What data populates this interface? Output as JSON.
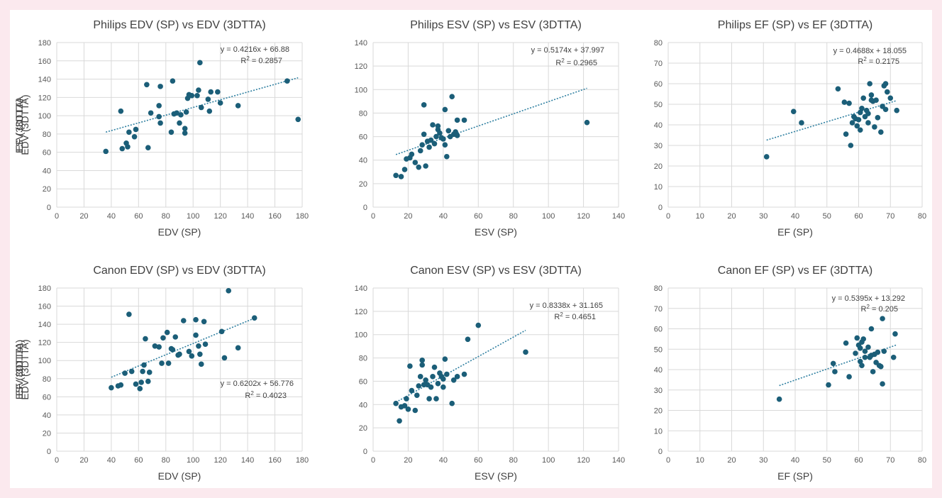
{
  "style": {
    "point_color": "#1b5e78",
    "trend_color": "#2e7fa0",
    "grid_color": "#d9d9d9"
  },
  "chart_data": [
    {
      "type": "scatter",
      "title": "Philips EDV (SP) vs EDV (3DTTA)",
      "xlabel": "EDV (SP)",
      "ylabel": "EDV (3DTTA)",
      "xlim": [
        0,
        180
      ],
      "ylim": [
        0,
        180
      ],
      "xticks": [
        0,
        20,
        40,
        60,
        80,
        100,
        120,
        140,
        160,
        180
      ],
      "yticks": [
        0,
        20,
        40,
        60,
        80,
        100,
        120,
        140,
        160,
        180
      ],
      "grid": true,
      "equation": "y = 0.4216x + 66.88",
      "r2_label": "R",
      "r2_value": " = 0.2857",
      "trend": {
        "slope": 0.4216,
        "intercept": 66.88,
        "x_range": [
          36,
          177
        ]
      },
      "points": [
        [
          36,
          61
        ],
        [
          47,
          105
        ],
        [
          48,
          64
        ],
        [
          51,
          70
        ],
        [
          52,
          66
        ],
        [
          53,
          82
        ],
        [
          57,
          77
        ],
        [
          58,
          85
        ],
        [
          66,
          134
        ],
        [
          67,
          65
        ],
        [
          69,
          103
        ],
        [
          75,
          111
        ],
        [
          75,
          99
        ],
        [
          76,
          92
        ],
        [
          76,
          132
        ],
        [
          84,
          82
        ],
        [
          85,
          138
        ],
        [
          86,
          102
        ],
        [
          88,
          103
        ],
        [
          90,
          92
        ],
        [
          91,
          101
        ],
        [
          94,
          86
        ],
        [
          94,
          81
        ],
        [
          95,
          104
        ],
        [
          96,
          119
        ],
        [
          97,
          123
        ],
        [
          99,
          122
        ],
        [
          103,
          122
        ],
        [
          104,
          128
        ],
        [
          105,
          158
        ],
        [
          106,
          109
        ],
        [
          111,
          118
        ],
        [
          112,
          105
        ],
        [
          113,
          126
        ],
        [
          118,
          126
        ],
        [
          120,
          114
        ],
        [
          133,
          111
        ],
        [
          169,
          138
        ],
        [
          177,
          96
        ]
      ]
    },
    {
      "type": "scatter",
      "title": "Philips ESV (SP) vs ESV (3DTTA)",
      "xlabel": "ESV (SP)",
      "ylabel": "ESV (3DTTA",
      "xlim": [
        0,
        140
      ],
      "ylim": [
        0,
        140
      ],
      "xticks": [
        0,
        20,
        40,
        60,
        80,
        100,
        120,
        140
      ],
      "yticks": [
        0,
        20,
        40,
        60,
        80,
        100,
        120,
        140
      ],
      "grid": true,
      "equation": "y = 0.5174x + 37.997",
      "r2_label": "R",
      "r2_value": " = 0.2965",
      "trend": {
        "slope": 0.5174,
        "intercept": 37.997,
        "x_range": [
          13,
          122
        ]
      },
      "points": [
        [
          13,
          27
        ],
        [
          16,
          26
        ],
        [
          18,
          32
        ],
        [
          19,
          41
        ],
        [
          21,
          42
        ],
        [
          22,
          45
        ],
        [
          24,
          38
        ],
        [
          26,
          34
        ],
        [
          27,
          48
        ],
        [
          28,
          53
        ],
        [
          29,
          62
        ],
        [
          29,
          87
        ],
        [
          30,
          35
        ],
        [
          31,
          56
        ],
        [
          32,
          51
        ],
        [
          33,
          57
        ],
        [
          34,
          70
        ],
        [
          35,
          54
        ],
        [
          36,
          60
        ],
        [
          37,
          66
        ],
        [
          37,
          69
        ],
        [
          38,
          63
        ],
        [
          39,
          59
        ],
        [
          40,
          58
        ],
        [
          41,
          53
        ],
        [
          41,
          83
        ],
        [
          42,
          43
        ],
        [
          43,
          65
        ],
        [
          44,
          60
        ],
        [
          45,
          94
        ],
        [
          46,
          62
        ],
        [
          47,
          64
        ],
        [
          48,
          74
        ],
        [
          48,
          61
        ],
        [
          52,
          74
        ],
        [
          122,
          72
        ]
      ]
    },
    {
      "type": "scatter",
      "title": "Philips EF (SP) vs EF (3DTTA)",
      "xlabel": "EF (SP)",
      "ylabel": "EF (3DTTA)",
      "xlim": [
        0,
        80
      ],
      "ylim": [
        0,
        80
      ],
      "xticks": [
        0,
        10,
        20,
        30,
        40,
        50,
        60,
        70,
        80
      ],
      "yticks": [
        0,
        10,
        20,
        30,
        40,
        50,
        60,
        70,
        80
      ],
      "grid": true,
      "equation": "y = 0.4688x + 18.055",
      "r2_label": "R",
      "r2_value": " = 0.2175",
      "trend": {
        "slope": 0.4688,
        "intercept": 18.055,
        "x_range": [
          31,
          72
        ]
      },
      "points": [
        [
          31,
          24.5
        ],
        [
          39.5,
          46.5
        ],
        [
          42,
          41
        ],
        [
          53.5,
          57.5
        ],
        [
          55.5,
          51
        ],
        [
          56,
          35.5
        ],
        [
          57,
          50.5
        ],
        [
          57.5,
          30
        ],
        [
          58,
          41
        ],
        [
          58.5,
          44
        ],
        [
          59,
          43
        ],
        [
          59.5,
          39.5
        ],
        [
          60,
          42.5
        ],
        [
          60.5,
          37.5
        ],
        [
          60.5,
          46
        ],
        [
          61,
          48
        ],
        [
          61.5,
          53
        ],
        [
          62,
          44
        ],
        [
          62.5,
          47
        ],
        [
          63,
          41
        ],
        [
          63,
          45.5
        ],
        [
          63.5,
          60
        ],
        [
          64,
          54.5
        ],
        [
          64,
          52
        ],
        [
          64.5,
          51.5
        ],
        [
          65,
          39
        ],
        [
          65.5,
          52
        ],
        [
          66,
          43.5
        ],
        [
          67,
          36.5
        ],
        [
          67.5,
          49
        ],
        [
          68,
          59
        ],
        [
          68.5,
          47.5
        ],
        [
          68.5,
          60
        ],
        [
          69,
          56
        ],
        [
          70,
          53
        ],
        [
          72,
          47
        ]
      ]
    },
    {
      "type": "scatter",
      "title": "Canon EDV (SP) vs EDV (3DTTA)",
      "xlabel": "EDV (SP)",
      "ylabel": "EDV (3DTTA)",
      "xlim": [
        0,
        180
      ],
      "ylim": [
        0,
        180
      ],
      "xticks": [
        0,
        20,
        40,
        60,
        80,
        100,
        120,
        140,
        160,
        180
      ],
      "yticks": [
        0,
        20,
        40,
        60,
        80,
        100,
        120,
        140,
        160,
        180
      ],
      "grid": true,
      "equation": "y = 0.6202x + 56.776",
      "r2_label": "R",
      "r2_value": " = 0.4023",
      "trend": {
        "slope": 0.6202,
        "intercept": 56.776,
        "x_range": [
          40,
          146
        ]
      },
      "points": [
        [
          40,
          70
        ],
        [
          45,
          72
        ],
        [
          47,
          73
        ],
        [
          50,
          86
        ],
        [
          53,
          151
        ],
        [
          55,
          88
        ],
        [
          58,
          74
        ],
        [
          61,
          69
        ],
        [
          62,
          76
        ],
        [
          63,
          88
        ],
        [
          64,
          95
        ],
        [
          65,
          124
        ],
        [
          67,
          77
        ],
        [
          68,
          87
        ],
        [
          72,
          116
        ],
        [
          75,
          115
        ],
        [
          77,
          97
        ],
        [
          78,
          125
        ],
        [
          81,
          131
        ],
        [
          82,
          97
        ],
        [
          84,
          113
        ],
        [
          85,
          112
        ],
        [
          87,
          126
        ],
        [
          89,
          106
        ],
        [
          90,
          107
        ],
        [
          93,
          144
        ],
        [
          97,
          110
        ],
        [
          99,
          105
        ],
        [
          102,
          145
        ],
        [
          102,
          128
        ],
        [
          104,
          116
        ],
        [
          105,
          107
        ],
        [
          106,
          96
        ],
        [
          108,
          143
        ],
        [
          109,
          118
        ],
        [
          121,
          132
        ],
        [
          123,
          103
        ],
        [
          126,
          177
        ],
        [
          133,
          114
        ],
        [
          145,
          147
        ]
      ]
    },
    {
      "type": "scatter",
      "title": "Canon ESV (SP) vs ESV (3DTTA)",
      "xlabel": "ESV (SP)",
      "ylabel": "ESV (3DTTA)",
      "xlim": [
        0,
        140
      ],
      "ylim": [
        0,
        140
      ],
      "xticks": [
        0,
        20,
        40,
        60,
        80,
        100,
        120,
        140
      ],
      "yticks": [
        0,
        20,
        40,
        60,
        80,
        100,
        120,
        140
      ],
      "grid": true,
      "equation": "y = 0.8338x + 31.165",
      "r2_label": "R",
      "r2_value": " = 0.4651",
      "trend": {
        "slope": 0.8338,
        "intercept": 31.165,
        "x_range": [
          13,
          87
        ]
      },
      "points": [
        [
          13,
          41
        ],
        [
          15,
          26
        ],
        [
          16,
          38
        ],
        [
          18,
          39
        ],
        [
          19,
          45
        ],
        [
          20,
          36
        ],
        [
          21,
          73
        ],
        [
          22,
          52
        ],
        [
          24,
          35
        ],
        [
          25,
          48
        ],
        [
          26,
          56
        ],
        [
          27,
          64
        ],
        [
          28,
          78
        ],
        [
          28,
          74
        ],
        [
          29,
          57
        ],
        [
          30,
          61
        ],
        [
          31,
          57
        ],
        [
          32,
          45
        ],
        [
          33,
          55
        ],
        [
          34,
          64
        ],
        [
          35,
          72
        ],
        [
          36,
          45
        ],
        [
          37,
          58
        ],
        [
          38,
          67
        ],
        [
          39,
          64
        ],
        [
          40,
          55
        ],
        [
          40,
          62
        ],
        [
          41,
          79
        ],
        [
          42,
          66
        ],
        [
          45,
          41
        ],
        [
          46,
          61
        ],
        [
          48,
          64
        ],
        [
          52,
          66
        ],
        [
          54,
          96
        ],
        [
          60,
          108
        ],
        [
          87,
          85
        ]
      ]
    },
    {
      "type": "scatter",
      "title": "Canon EF (SP) vs EF (3DTTA)",
      "xlabel": "EF (SP)",
      "ylabel": "EF (3DTTA)",
      "xlim": [
        0,
        80
      ],
      "ylim": [
        0,
        80
      ],
      "xticks": [
        0,
        10,
        20,
        30,
        40,
        50,
        60,
        70,
        80
      ],
      "yticks": [
        0,
        10,
        20,
        30,
        40,
        50,
        60,
        70,
        80
      ],
      "grid": true,
      "equation": "y = 0.5395x + 13.292",
      "r2_label": "R",
      "r2_value": " = 0.205",
      "trend": {
        "slope": 0.5395,
        "intercept": 13.292,
        "x_range": [
          35,
          72
        ]
      },
      "points": [
        [
          35,
          25.5
        ],
        [
          50.5,
          32.5
        ],
        [
          52,
          43
        ],
        [
          52.5,
          39
        ],
        [
          56,
          53
        ],
        [
          57,
          36.5
        ],
        [
          59,
          48
        ],
        [
          59.5,
          55.5
        ],
        [
          60,
          52
        ],
        [
          60.5,
          50.5
        ],
        [
          60.5,
          44
        ],
        [
          61,
          53.5
        ],
        [
          61,
          42
        ],
        [
          61.5,
          55
        ],
        [
          62,
          49
        ],
        [
          62,
          46
        ],
        [
          63,
          51
        ],
        [
          63.5,
          46
        ],
        [
          64,
          47
        ],
        [
          64,
          60
        ],
        [
          64.5,
          39
        ],
        [
          65,
          47.5
        ],
        [
          65.5,
          43.5
        ],
        [
          66,
          48.5
        ],
        [
          66.5,
          42
        ],
        [
          67,
          41.5
        ],
        [
          67.5,
          65
        ],
        [
          67.5,
          33
        ],
        [
          68,
          49
        ],
        [
          71,
          46
        ],
        [
          71.5,
          57.5
        ]
      ]
    }
  ]
}
